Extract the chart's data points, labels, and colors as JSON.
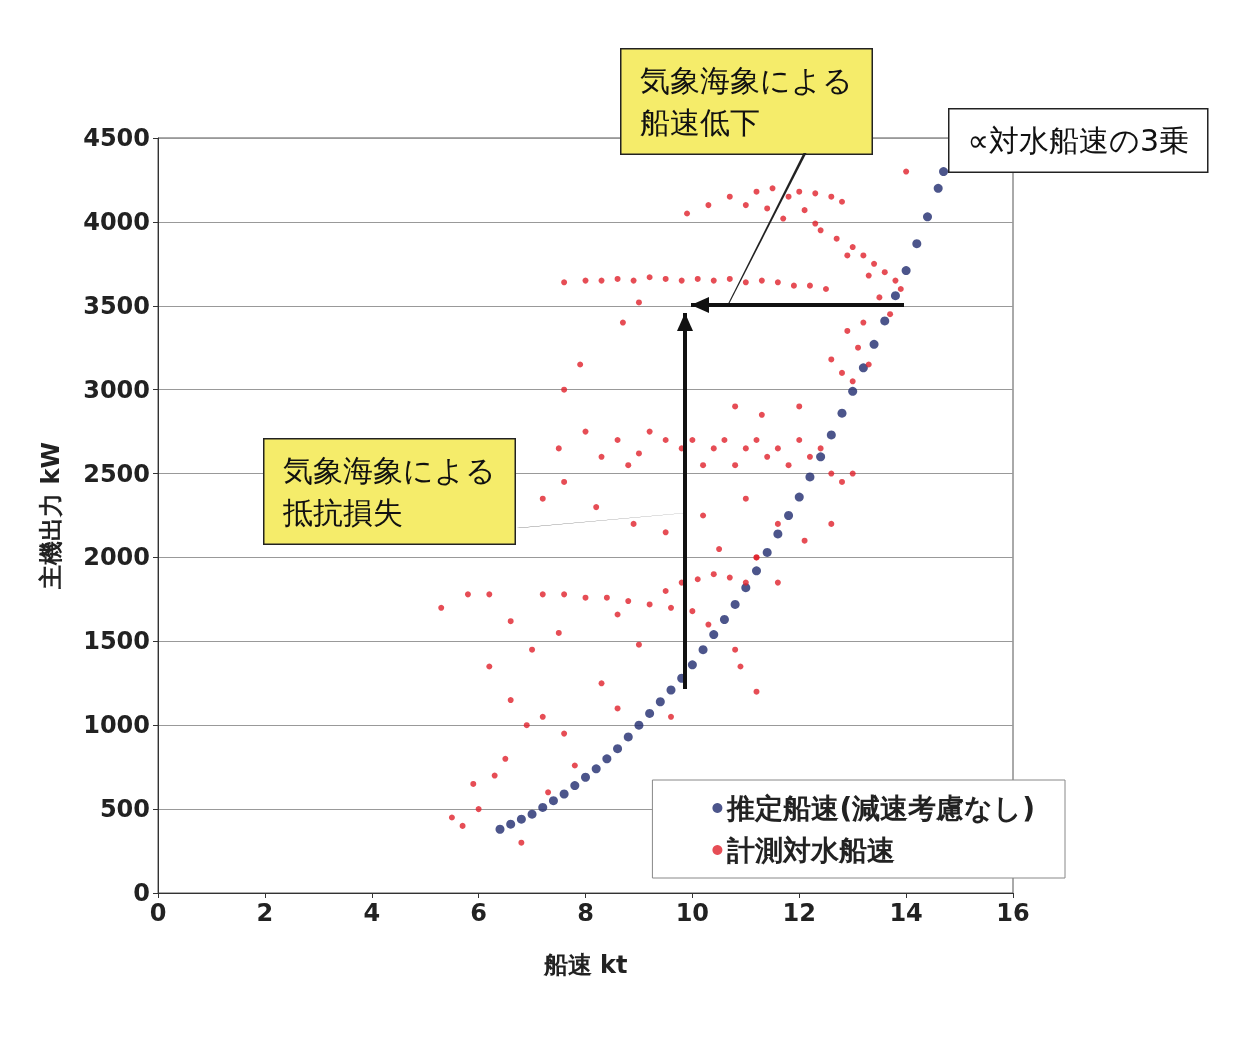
{
  "chart_data": {
    "type": "scatter",
    "xlabel": "船速 kt",
    "ylabel": "主機出力 kW",
    "xlim": [
      0,
      16
    ],
    "xticks": [
      0,
      2,
      4,
      6,
      8,
      10,
      12,
      14,
      16
    ],
    "ylim": [
      0,
      4500
    ],
    "yticks": [
      0,
      500,
      1000,
      1500,
      2000,
      2500,
      3000,
      3500,
      4000,
      4500
    ],
    "grid": "y",
    "legend": "bottom right",
    "marker": "circle",
    "annotations": [
      "気象海象による船速低下",
      "気象海象による抵抗損失",
      "∝対水船速の3乗"
    ],
    "series": [
      {
        "name": "推定船速(減速考慮なし)",
        "color": "#1f2a6e",
        "x": [
          6.4,
          6.6,
          6.8,
          7.0,
          7.2,
          7.4,
          7.6,
          7.8,
          8.0,
          8.2,
          8.4,
          8.6,
          8.8,
          9.0,
          9.2,
          9.4,
          9.6,
          9.8,
          10.0,
          10.2,
          10.4,
          10.6,
          10.8,
          11.0,
          11.2,
          11.4,
          11.6,
          11.8,
          12.0,
          12.2,
          12.4,
          12.6,
          12.8,
          13.0,
          13.2,
          13.4,
          13.6,
          13.8,
          14.0,
          14.2,
          14.4,
          14.6,
          14.7
        ],
        "values": [
          380,
          410,
          440,
          470,
          510,
          550,
          590,
          640,
          690,
          740,
          800,
          860,
          930,
          1000,
          1070,
          1140,
          1210,
          1280,
          1360,
          1450,
          1540,
          1630,
          1720,
          1820,
          1920,
          2030,
          2140,
          2250,
          2360,
          2480,
          2600,
          2730,
          2860,
          2990,
          3130,
          3270,
          3410,
          3560,
          3710,
          3870,
          4030,
          4200,
          4300
        ]
      },
      {
        "name": "計測対水船速",
        "color": "#e0202a",
        "x": [
          10.7,
          11,
          11.2,
          11.5,
          11.8,
          12,
          12.3,
          12.6,
          12.8,
          10.3,
          9.9,
          11.4,
          12.1,
          11.7,
          12.3,
          14,
          12.4,
          12.7,
          13,
          13.2,
          13.4,
          13.6,
          13.8,
          13.9,
          12.9,
          13.3,
          13.5,
          13.7,
          13.2,
          12.9,
          13.1,
          13.3,
          13.0,
          12.8,
          12.6,
          7.6,
          8,
          8.3,
          8.6,
          8.9,
          9.2,
          9.5,
          9.8,
          10.1,
          10.4,
          10.7,
          11,
          11.3,
          11.6,
          11.9,
          12.2,
          12.5,
          9,
          8.7,
          7.9,
          7.6,
          7.5,
          8,
          8.3,
          8.6,
          8.8,
          9,
          9.2,
          9.5,
          9.8,
          10,
          10.2,
          10.4,
          10.6,
          10.8,
          11,
          11.2,
          11.4,
          11.6,
          11.8,
          12,
          12.2,
          12.4,
          12.6,
          12.8,
          13,
          7.6,
          7.2,
          8.2,
          8.9,
          9.5,
          10.2,
          11,
          11.6,
          12.1,
          12.6,
          10.5,
          11.2,
          10.8,
          11.3,
          12,
          5.3,
          5.8,
          6.2,
          6.6,
          7.2,
          7.6,
          8,
          8.4,
          8.8,
          9.2,
          9.5,
          9.8,
          10.1,
          10.4,
          10.7,
          11,
          9.6,
          10,
          8.6,
          11.2,
          11.6,
          5.5,
          5.7,
          6,
          5.9,
          6.3,
          6.5,
          6.9,
          7.2,
          6.6,
          7.6,
          6.2,
          7,
          7.5,
          8.3,
          8.6,
          9,
          9.6,
          10.3,
          10.8,
          11.2,
          10.9,
          7.3,
          7.8,
          6.8
        ],
        "values": [
          4150,
          4100,
          4180,
          4200,
          4150,
          4180,
          4170,
          4150,
          4120,
          4100,
          4050,
          4080,
          4070,
          4020,
          3990,
          4300,
          3950,
          3900,
          3850,
          3800,
          3750,
          3700,
          3650,
          3600,
          3800,
          3680,
          3550,
          3450,
          3400,
          3350,
          3250,
          3150,
          3050,
          3100,
          3180,
          3640,
          3650,
          3650,
          3660,
          3650,
          3670,
          3660,
          3650,
          3660,
          3650,
          3660,
          3640,
          3650,
          3640,
          3620,
          3620,
          3600,
          3520,
          3400,
          3150,
          3000,
          2650,
          2750,
          2600,
          2700,
          2550,
          2620,
          2750,
          2700,
          2650,
          2700,
          2550,
          2650,
          2700,
          2550,
          2650,
          2700,
          2600,
          2650,
          2550,
          2700,
          2600,
          2650,
          2500,
          2450,
          2500,
          2450,
          2350,
          2300,
          2200,
          2150,
          2250,
          2350,
          2200,
          2100,
          2200,
          2050,
          2000,
          2900,
          2850,
          2900,
          1700,
          1780,
          1780,
          1620,
          1780,
          1780,
          1760,
          1760,
          1740,
          1720,
          1800,
          1850,
          1870,
          1900,
          1880,
          1850,
          1700,
          1680,
          1660,
          2000,
          1850,
          450,
          400,
          500,
          650,
          700,
          800,
          1000,
          1050,
          1150,
          950,
          1350,
          1450,
          1550,
          1250,
          1100,
          1480,
          1050,
          1600,
          1450,
          1200,
          1350,
          600,
          760,
          300
        ]
      }
    ]
  }
}
